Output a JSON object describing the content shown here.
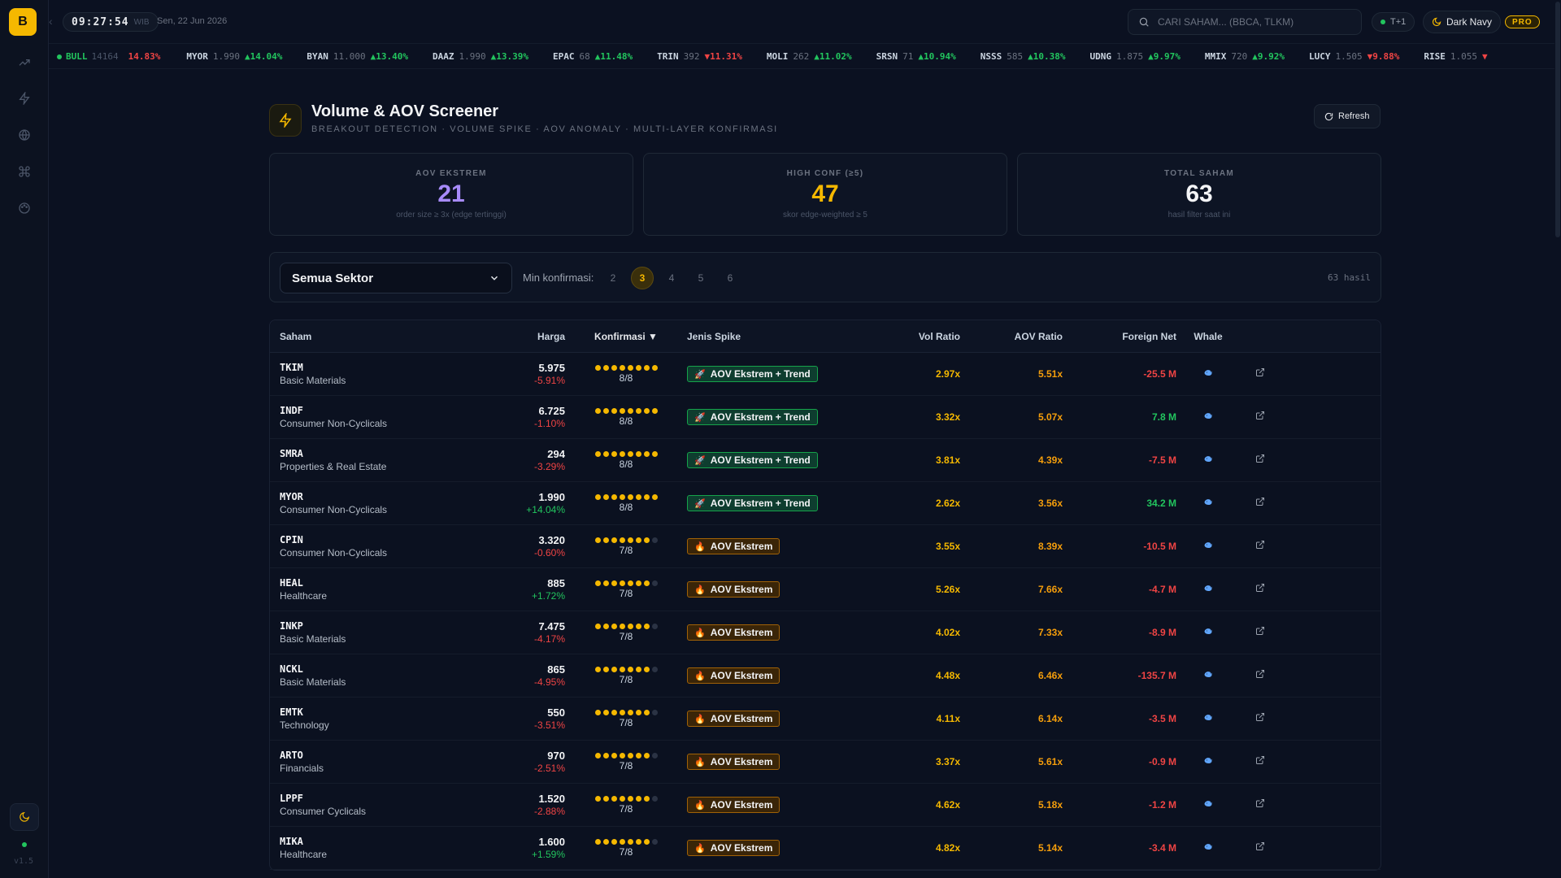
{
  "app": {
    "logo_letter": "B",
    "version": "v1.5",
    "clock": "09:27:54",
    "timezone": "WIB",
    "date": "Sen, 22 Jun 2026",
    "search_placeholder": "CARI SAHAM... (BBCA, TLKM)",
    "settlement": "T+1",
    "theme": "Dark Navy",
    "plan": "PRO"
  },
  "ticker": {
    "bull_label": "BULL",
    "bull_value": "14164",
    "lead_change": "14.83%",
    "items": [
      {
        "code": "MYOR",
        "price": "1.990",
        "change": "14.04%",
        "dir": "up"
      },
      {
        "code": "BYAN",
        "price": "11.000",
        "change": "13.40%",
        "dir": "up"
      },
      {
        "code": "DAAZ",
        "price": "1.990",
        "change": "13.39%",
        "dir": "up"
      },
      {
        "code": "EPAC",
        "price": "68",
        "change": "11.48%",
        "dir": "up"
      },
      {
        "code": "TRIN",
        "price": "392",
        "change": "11.31%",
        "dir": "down"
      },
      {
        "code": "MOLI",
        "price": "262",
        "change": "11.02%",
        "dir": "up"
      },
      {
        "code": "SRSN",
        "price": "71",
        "change": "10.94%",
        "dir": "up"
      },
      {
        "code": "NSSS",
        "price": "585",
        "change": "10.38%",
        "dir": "up"
      },
      {
        "code": "UDNG",
        "price": "1.875",
        "change": "9.97%",
        "dir": "up"
      },
      {
        "code": "MMIX",
        "price": "720",
        "change": "9.92%",
        "dir": "up"
      },
      {
        "code": "LUCY",
        "price": "1.505",
        "change": "9.88%",
        "dir": "down"
      },
      {
        "code": "RISE",
        "price": "1.055",
        "change": "",
        "dir": "down"
      }
    ]
  },
  "page": {
    "title": "Volume & AOV Screener",
    "subtitle": "BREAKOUT DETECTION · VOLUME SPIKE · AOV ANOMALY · MULTI-LAYER KONFIRMASI",
    "refresh_label": "Refresh"
  },
  "stats": [
    {
      "label": "AOV EKSTREM",
      "value": "21",
      "sub": "order size ≥ 3x (edge tertinggi)",
      "color": "#a78bfa"
    },
    {
      "label": "HIGH CONF (≥5)",
      "value": "47",
      "sub": "skor edge-weighted ≥ 5",
      "color": "#f5b800"
    },
    {
      "label": "TOTAL SAHAM",
      "value": "63",
      "sub": "hasil filter saat ini",
      "color": "#f3f4f6"
    }
  ],
  "filters": {
    "sector_selected": "Semua Sektor",
    "min_label": "Min konfirmasi:",
    "options": [
      "2",
      "3",
      "4",
      "5",
      "6"
    ],
    "active_option": "3",
    "result_count": "63 hasil"
  },
  "table": {
    "headers": {
      "saham": "Saham",
      "harga": "Harga",
      "konfirmasi": "Konfirmasi ▼",
      "jenis": "Jenis Spike",
      "vol": "Vol Ratio",
      "aov": "AOV Ratio",
      "foreign": "Foreign Net",
      "whale": "Whale"
    },
    "rows": [
      {
        "code": "TKIM",
        "sector": "Basic Materials",
        "price": "5.975",
        "change": "-5.91%",
        "score": 8,
        "score_text": "8/8",
        "type": "AOV Ekstrem + Trend",
        "kind": "trend",
        "vol": "2.97x",
        "aov": "5.51x",
        "foreign": "-25.5 M"
      },
      {
        "code": "INDF",
        "sector": "Consumer Non-Cyclicals",
        "price": "6.725",
        "change": "-1.10%",
        "score": 8,
        "score_text": "8/8",
        "type": "AOV Ekstrem + Trend",
        "kind": "trend",
        "vol": "3.32x",
        "aov": "5.07x",
        "foreign": "7.8 M"
      },
      {
        "code": "SMRA",
        "sector": "Properties & Real Estate",
        "price": "294",
        "change": "-3.29%",
        "score": 8,
        "score_text": "8/8",
        "type": "AOV Ekstrem + Trend",
        "kind": "trend",
        "vol": "3.81x",
        "aov": "4.39x",
        "foreign": "-7.5 M"
      },
      {
        "code": "MYOR",
        "sector": "Consumer Non-Cyclicals",
        "price": "1.990",
        "change": "+14.04%",
        "score": 8,
        "score_text": "8/8",
        "type": "AOV Ekstrem + Trend",
        "kind": "trend",
        "vol": "2.62x",
        "aov": "3.56x",
        "foreign": "34.2 M"
      },
      {
        "code": "CPIN",
        "sector": "Consumer Non-Cyclicals",
        "price": "3.320",
        "change": "-0.60%",
        "score": 7,
        "score_text": "7/8",
        "type": "AOV Ekstrem",
        "kind": "ekstrem",
        "vol": "3.55x",
        "aov": "8.39x",
        "foreign": "-10.5 M"
      },
      {
        "code": "HEAL",
        "sector": "Healthcare",
        "price": "885",
        "change": "+1.72%",
        "score": 7,
        "score_text": "7/8",
        "type": "AOV Ekstrem",
        "kind": "ekstrem",
        "vol": "5.26x",
        "aov": "7.66x",
        "foreign": "-4.7 M"
      },
      {
        "code": "INKP",
        "sector": "Basic Materials",
        "price": "7.475",
        "change": "-4.17%",
        "score": 7,
        "score_text": "7/8",
        "type": "AOV Ekstrem",
        "kind": "ekstrem",
        "vol": "4.02x",
        "aov": "7.33x",
        "foreign": "-8.9 M"
      },
      {
        "code": "NCKL",
        "sector": "Basic Materials",
        "price": "865",
        "change": "-4.95%",
        "score": 7,
        "score_text": "7/8",
        "type": "AOV Ekstrem",
        "kind": "ekstrem",
        "vol": "4.48x",
        "aov": "6.46x",
        "foreign": "-135.7 M"
      },
      {
        "code": "EMTK",
        "sector": "Technology",
        "price": "550",
        "change": "-3.51%",
        "score": 7,
        "score_text": "7/8",
        "type": "AOV Ekstrem",
        "kind": "ekstrem",
        "vol": "4.11x",
        "aov": "6.14x",
        "foreign": "-3.5 M"
      },
      {
        "code": "ARTO",
        "sector": "Financials",
        "price": "970",
        "change": "-2.51%",
        "score": 7,
        "score_text": "7/8",
        "type": "AOV Ekstrem",
        "kind": "ekstrem",
        "vol": "3.37x",
        "aov": "5.61x",
        "foreign": "-0.9 M"
      },
      {
        "code": "LPPF",
        "sector": "Consumer Cyclicals",
        "price": "1.520",
        "change": "-2.88%",
        "score": 7,
        "score_text": "7/8",
        "type": "AOV Ekstrem",
        "kind": "ekstrem",
        "vol": "4.62x",
        "aov": "5.18x",
        "foreign": "-1.2 M"
      },
      {
        "code": "MIKA",
        "sector": "Healthcare",
        "price": "1.600",
        "change": "+1.59%",
        "score": 7,
        "score_text": "7/8",
        "type": "AOV Ekstrem",
        "kind": "ekstrem",
        "vol": "4.82x",
        "aov": "5.14x",
        "foreign": "-3.4 M"
      }
    ]
  }
}
